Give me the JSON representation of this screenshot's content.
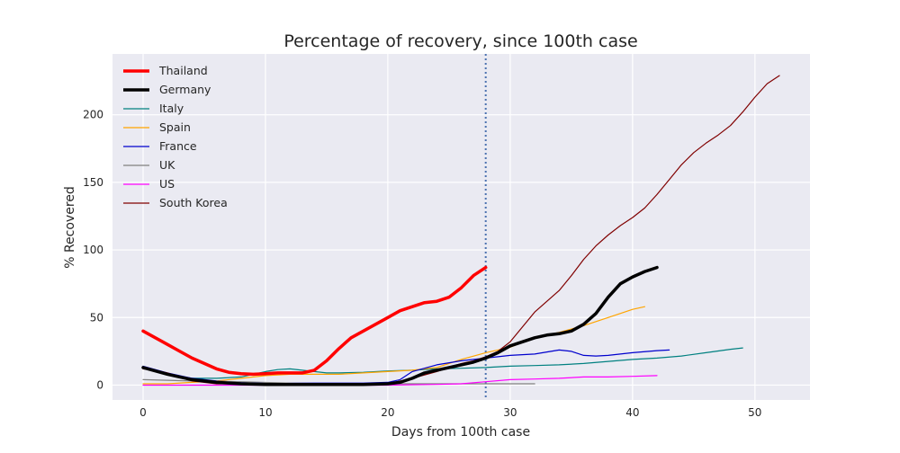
{
  "chart_data": {
    "type": "line",
    "title": "Percentage of recovery, since 100th case",
    "xlabel": "Days from 100th case",
    "ylabel": "% Recovered",
    "xlim": [
      -2.5,
      54.5
    ],
    "ylim": [
      -11,
      245
    ],
    "xticks": [
      0,
      10,
      20,
      30,
      40,
      50
    ],
    "yticks": [
      0,
      50,
      100,
      150,
      200
    ],
    "grid": true,
    "legend_position": "top-left",
    "vline": {
      "x": 28,
      "style": "dotted",
      "color": "#4c72b0"
    },
    "colors": {
      "plot_background": "#eaeaf2",
      "grid": "#ffffff",
      "text": "#262626"
    },
    "series": [
      {
        "name": "Thailand",
        "color": "#ff0000",
        "width": 3.5,
        "x": [
          0,
          1,
          2,
          3,
          4,
          5,
          6,
          7,
          8,
          9,
          10,
          11,
          12,
          13,
          14,
          15,
          16,
          17,
          18,
          19,
          20,
          21,
          22,
          23,
          24,
          25,
          26,
          27,
          28
        ],
        "y": [
          40,
          35,
          30,
          25,
          20,
          16,
          12,
          9.5,
          8.5,
          8,
          8.5,
          9,
          9,
          9,
          11,
          18,
          27,
          35,
          40,
          45,
          50,
          55,
          58,
          61,
          62,
          65,
          72,
          81,
          87
        ]
      },
      {
        "name": "Germany",
        "color": "#000000",
        "width": 3.5,
        "x": [
          0,
          2,
          4,
          6,
          8,
          10,
          12,
          14,
          16,
          18,
          20,
          21,
          22,
          23,
          24,
          25,
          26,
          27,
          28,
          29,
          30,
          31,
          32,
          33,
          34,
          35,
          36,
          37,
          38,
          39,
          40,
          41,
          42
        ],
        "y": [
          13,
          8,
          4,
          2,
          1,
          0.5,
          0.5,
          0.5,
          0.5,
          0.5,
          1,
          2,
          5,
          9,
          11,
          13,
          15,
          17,
          20,
          24,
          29,
          32,
          35,
          37,
          38,
          40,
          45,
          53,
          65,
          75,
          80,
          84,
          87
        ]
      },
      {
        "name": "Italy",
        "color": "#008080",
        "width": 1.2,
        "x": [
          0,
          2,
          4,
          6,
          8,
          9,
          10,
          11,
          12,
          13,
          14,
          15,
          16,
          18,
          20,
          22,
          24,
          26,
          28,
          30,
          32,
          34,
          36,
          38,
          40,
          42,
          44,
          46,
          48,
          49
        ],
        "y": [
          13,
          8,
          5,
          5,
          6,
          8,
          10,
          11.5,
          12,
          11,
          10,
          9,
          9,
          9.5,
          10.5,
          11,
          12,
          12.5,
          13,
          14,
          14.5,
          15,
          16,
          17.5,
          19,
          20,
          21.5,
          24,
          26.5,
          27.5
        ]
      },
      {
        "name": "Spain",
        "color": "#ffa500",
        "width": 1.2,
        "x": [
          0,
          2,
          4,
          6,
          8,
          10,
          12,
          14,
          16,
          18,
          20,
          22,
          24,
          26,
          28,
          30,
          32,
          34,
          36,
          38,
          40,
          41
        ],
        "y": [
          1,
          1,
          2,
          3,
          5,
          7,
          8,
          8,
          8,
          9,
          10,
          11,
          13,
          19,
          24,
          28,
          35,
          39,
          44,
          50,
          56,
          58
        ]
      },
      {
        "name": "France",
        "color": "#0000cd",
        "width": 1.2,
        "x": [
          0,
          2,
          4,
          6,
          8,
          10,
          12,
          14,
          16,
          18,
          20,
          21,
          22,
          24,
          26,
          28,
          30,
          32,
          34,
          35,
          36,
          37,
          38,
          40,
          42,
          43
        ],
        "y": [
          14,
          9,
          5,
          3,
          2,
          1.5,
          1.5,
          1.5,
          1.5,
          1.5,
          2,
          4,
          10,
          15,
          18,
          20,
          22,
          23,
          26,
          25,
          22,
          21.5,
          22,
          24,
          25.5,
          26
        ]
      },
      {
        "name": "UK",
        "color": "#808080",
        "width": 1.2,
        "x": [
          0,
          4,
          8,
          12,
          16,
          20,
          24,
          28,
          32
        ],
        "y": [
          4,
          3,
          2.5,
          1.5,
          1,
          1,
          1,
          1,
          1
        ]
      },
      {
        "name": "US",
        "color": "#ff00ff",
        "width": 1.2,
        "x": [
          0,
          4,
          8,
          12,
          16,
          20,
          24,
          26,
          28,
          30,
          32,
          34,
          36,
          38,
          40,
          42
        ],
        "y": [
          0,
          0,
          0,
          0,
          0,
          0,
          0.5,
          1,
          2.5,
          4,
          4.5,
          5,
          6,
          6,
          6.5,
          7
        ]
      },
      {
        "name": "South Korea",
        "color": "#800000",
        "width": 1.2,
        "x": [
          0,
          1,
          2,
          3,
          4,
          5,
          6,
          7,
          8,
          10,
          12,
          14,
          16,
          18,
          20,
          22,
          24,
          26,
          27,
          28,
          29,
          30,
          31,
          32,
          33,
          34,
          35,
          36,
          37,
          38,
          39,
          40,
          41,
          42,
          43,
          44,
          45,
          46,
          47,
          48,
          49,
          50,
          51,
          52
        ],
        "y": [
          12,
          11,
          9,
          6,
          3,
          2,
          1,
          1,
          1,
          0.5,
          0.5,
          0.5,
          0.5,
          0.5,
          1,
          5,
          10,
          16,
          18,
          21,
          25,
          32,
          43,
          54,
          62,
          70,
          81,
          93,
          103,
          111,
          118,
          124,
          131,
          141,
          152,
          163,
          172,
          179,
          185,
          192,
          202,
          213,
          223,
          229
        ]
      }
    ]
  }
}
